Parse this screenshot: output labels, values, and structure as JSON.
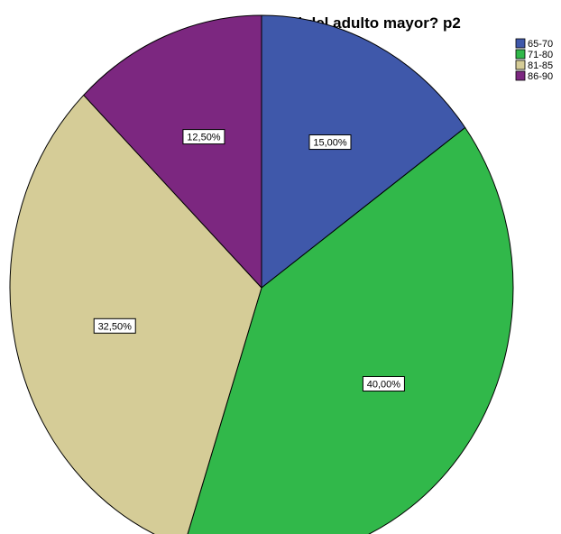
{
  "chart_data": {
    "type": "pie",
    "title": "¿Edad del adulto mayor? p2",
    "categories": [
      "65-70",
      "71-80",
      "81-85",
      "86-90"
    ],
    "values": [
      15.0,
      40.0,
      32.5,
      12.5
    ],
    "labels": [
      "15,00%",
      "40,00%",
      "32,50%",
      "12,50%"
    ],
    "colors": [
      "#3f58aa",
      "#31b84a",
      "#d5cc97",
      "#7c2780"
    ],
    "start_angle_deg": 0,
    "direction": "clockwise",
    "legend_position": "top-right"
  }
}
